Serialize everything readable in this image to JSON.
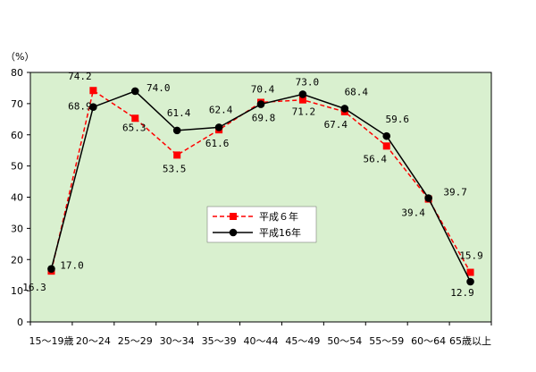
{
  "chart_data": {
    "type": "line",
    "unit_label": "（%）",
    "categories": [
      "15～19歳",
      "20～24",
      "25～29",
      "30～34",
      "35～39",
      "40～44",
      "45～49",
      "50～54",
      "55～59",
      "60～64",
      "65歳以上"
    ],
    "ylim": [
      0,
      80
    ],
    "yticks": [
      0,
      10,
      20,
      30,
      40,
      50,
      60,
      70,
      80
    ],
    "legend_position": "center",
    "plot_background": "#d9f0cf",
    "series": [
      {
        "name": "平成６年",
        "values": [
          16.3,
          74.2,
          65.3,
          53.5,
          61.6,
          70.4,
          71.2,
          67.4,
          56.4,
          39.4,
          15.9
        ],
        "labels": [
          "16.3",
          "74.2",
          "65.3",
          "53.5",
          "61.6",
          "70.4",
          "71.2",
          "67.4",
          "56.4",
          "39.4",
          "15.9"
        ],
        "color": "#ff0000",
        "line_style": "dashed",
        "marker": "square"
      },
      {
        "name": "平成16年",
        "values": [
          17.0,
          68.9,
          74.0,
          61.4,
          62.4,
          69.8,
          73.0,
          68.4,
          59.6,
          39.7,
          12.9
        ],
        "labels": [
          "17.0",
          "68.9",
          "74.0",
          "61.4",
          "62.4",
          "69.8",
          "73.0",
          "68.4",
          "59.6",
          "39.7",
          "12.9"
        ],
        "color": "#000000",
        "line_style": "solid",
        "marker": "circle"
      }
    ]
  }
}
